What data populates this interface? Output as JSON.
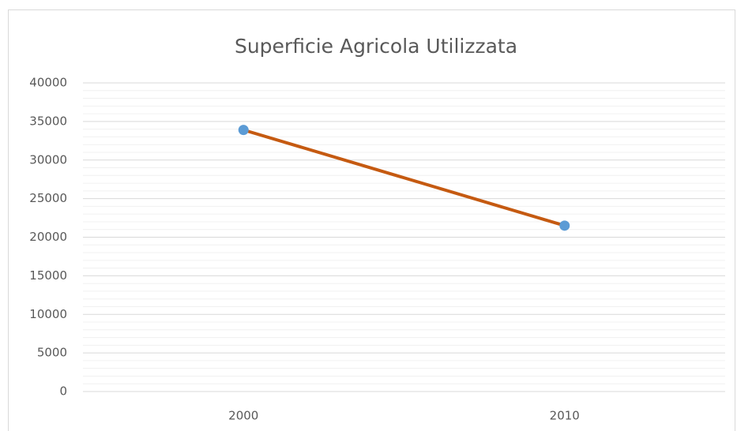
{
  "chart_data": {
    "type": "line",
    "title": "Superficie Agricola Utilizzata",
    "categories": [
      "2000",
      "2010"
    ],
    "series": [
      {
        "color": "#c55a11",
        "marker_color": "#5b9bd5",
        "values": [
          33900,
          21500
        ]
      }
    ],
    "ylim": [
      0,
      40000
    ],
    "yticks": [
      0,
      5000,
      10000,
      15000,
      20000,
      25000,
      30000,
      35000,
      40000
    ],
    "grid": true,
    "minor_grid": true
  }
}
